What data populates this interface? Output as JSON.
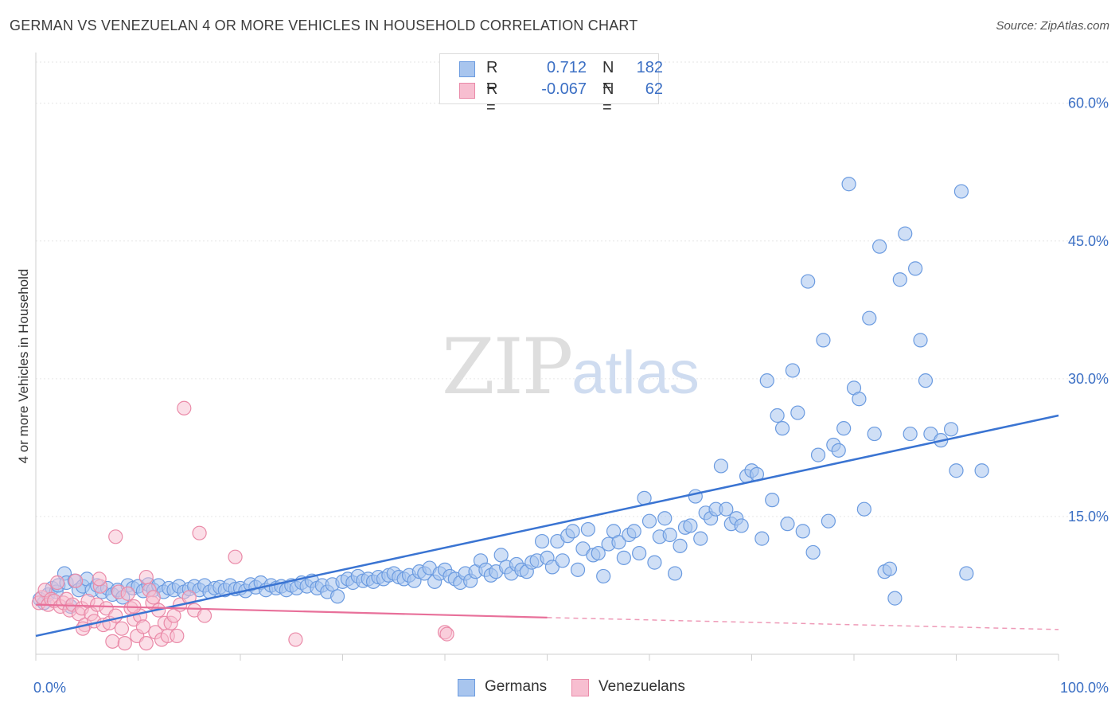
{
  "title": "GERMAN VS VENEZUELAN 4 OR MORE VEHICLES IN HOUSEHOLD CORRELATION CHART",
  "source": "Source: ZipAtlas.com",
  "watermark": {
    "zip": "ZIP",
    "atlas": "atlas"
  },
  "legend": {
    "rows": [
      {
        "r_label": "R =",
        "r_value": "0.712",
        "n_label": "N =",
        "n_value": "182",
        "color": "#a8c5ee",
        "border": "#6b9be0"
      },
      {
        "r_label": "R =",
        "r_value": "-0.067",
        "n_label": "N =",
        "n_value": "62",
        "color": "#f7bed0",
        "border": "#ea8aa8"
      }
    ]
  },
  "bottom_legend": [
    {
      "label": "Germans",
      "color": "#a8c5ee",
      "border": "#6b9be0"
    },
    {
      "label": "Venezuelans",
      "color": "#f7bed0",
      "border": "#ea8aa8"
    }
  ],
  "chart_data": {
    "type": "scatter",
    "title": "GERMAN VS VENEZUELAN 4 OR MORE VEHICLES IN HOUSEHOLD CORRELATION CHART",
    "xlabel": "",
    "ylabel": "4 or more Vehicles in Household",
    "xlim": [
      0,
      100
    ],
    "ylim": [
      0,
      65
    ],
    "x_ticks": [
      {
        "value": 0,
        "label": "0.0%"
      },
      {
        "value": 100,
        "label": "100.0%"
      }
    ],
    "y_ticks": [
      {
        "value": 15,
        "label": "15.0%"
      },
      {
        "value": 30,
        "label": "30.0%"
      },
      {
        "value": 45,
        "label": "45.0%"
      },
      {
        "value": 60,
        "label": "60.0%"
      }
    ],
    "grid": true,
    "legend_placement": "top-center",
    "colors": {
      "germans_fill": "#a8c5ee",
      "germans_stroke": "#6b9be0",
      "germans_line": "#3a74d2",
      "venezuelans_fill": "#f7bed0",
      "venezuelans_stroke": "#ea8aa8",
      "venezuelans_line": "#e8709a"
    },
    "series": [
      {
        "name": "Germans",
        "trend": {
          "x": [
            0,
            100
          ],
          "y": [
            2.0,
            26.0
          ],
          "style": "solid"
        },
        "points": [
          [
            0.4,
            6.0
          ],
          [
            0.8,
            5.6
          ],
          [
            1.2,
            6.5
          ],
          [
            1.6,
            7.2
          ],
          [
            2.0,
            6.8
          ],
          [
            2.2,
            7.5
          ],
          [
            2.8,
            8.8
          ],
          [
            3.0,
            7.8
          ],
          [
            3.4,
            5.2
          ],
          [
            3.8,
            8.0
          ],
          [
            4.2,
            7.0
          ],
          [
            4.6,
            7.4
          ],
          [
            5.0,
            8.2
          ],
          [
            5.5,
            7.0
          ],
          [
            6.0,
            7.5
          ],
          [
            6.5,
            6.8
          ],
          [
            7.0,
            7.2
          ],
          [
            7.5,
            6.5
          ],
          [
            8.0,
            7.0
          ],
          [
            8.5,
            6.2
          ],
          [
            9.0,
            7.5
          ],
          [
            9.5,
            7.2
          ],
          [
            10.0,
            7.4
          ],
          [
            10.5,
            6.9
          ],
          [
            11.0,
            7.6
          ],
          [
            11.5,
            7.0
          ],
          [
            12.0,
            7.5
          ],
          [
            12.5,
            6.8
          ],
          [
            13.0,
            7.2
          ],
          [
            13.5,
            7.0
          ],
          [
            14.0,
            7.4
          ],
          [
            14.5,
            6.8
          ],
          [
            15.0,
            7.1
          ],
          [
            15.5,
            7.4
          ],
          [
            16.0,
            7.0
          ],
          [
            16.5,
            7.5
          ],
          [
            17.0,
            6.8
          ],
          [
            17.5,
            7.2
          ],
          [
            18.0,
            7.3
          ],
          [
            18.5,
            7.0
          ],
          [
            19.0,
            7.5
          ],
          [
            19.5,
            7.1
          ],
          [
            20.0,
            7.2
          ],
          [
            20.5,
            6.9
          ],
          [
            21.0,
            7.6
          ],
          [
            21.5,
            7.3
          ],
          [
            22.0,
            7.8
          ],
          [
            22.5,
            7.0
          ],
          [
            23.0,
            7.5
          ],
          [
            23.5,
            7.2
          ],
          [
            24.0,
            7.4
          ],
          [
            24.5,
            7.0
          ],
          [
            25.0,
            7.5
          ],
          [
            25.5,
            7.2
          ],
          [
            26.0,
            7.8
          ],
          [
            26.5,
            7.4
          ],
          [
            27.0,
            8.0
          ],
          [
            27.5,
            7.2
          ],
          [
            28.0,
            7.5
          ],
          [
            28.5,
            6.8
          ],
          [
            29.0,
            7.6
          ],
          [
            29.5,
            6.3
          ],
          [
            30.0,
            7.9
          ],
          [
            30.5,
            8.2
          ],
          [
            31.0,
            7.8
          ],
          [
            31.5,
            8.5
          ],
          [
            32.0,
            8.0
          ],
          [
            32.5,
            8.2
          ],
          [
            33.0,
            7.9
          ],
          [
            33.5,
            8.4
          ],
          [
            34.0,
            8.2
          ],
          [
            34.5,
            8.6
          ],
          [
            35.0,
            8.8
          ],
          [
            35.5,
            8.4
          ],
          [
            36.0,
            8.2
          ],
          [
            36.5,
            8.6
          ],
          [
            37.0,
            8.0
          ],
          [
            37.5,
            9.0
          ],
          [
            38.0,
            8.8
          ],
          [
            38.5,
            9.4
          ],
          [
            39.0,
            7.9
          ],
          [
            39.5,
            8.8
          ],
          [
            40.0,
            9.2
          ],
          [
            40.5,
            8.5
          ],
          [
            41.0,
            8.2
          ],
          [
            41.5,
            7.8
          ],
          [
            42.0,
            8.8
          ],
          [
            42.5,
            8.0
          ],
          [
            43.0,
            9.0
          ],
          [
            43.5,
            10.2
          ],
          [
            44.0,
            9.2
          ],
          [
            44.5,
            8.6
          ],
          [
            45.0,
            9.0
          ],
          [
            45.5,
            10.8
          ],
          [
            46.0,
            9.5
          ],
          [
            46.5,
            8.8
          ],
          [
            47.0,
            9.8
          ],
          [
            47.5,
            9.2
          ],
          [
            48.0,
            9.0
          ],
          [
            48.5,
            10.0
          ],
          [
            49.0,
            10.2
          ],
          [
            49.5,
            12.3
          ],
          [
            50.0,
            10.5
          ],
          [
            50.5,
            9.5
          ],
          [
            51.0,
            12.3
          ],
          [
            51.5,
            10.2
          ],
          [
            52.0,
            12.9
          ],
          [
            52.5,
            13.4
          ],
          [
            53.0,
            9.2
          ],
          [
            53.5,
            11.5
          ],
          [
            54.0,
            13.6
          ],
          [
            54.5,
            10.8
          ],
          [
            55.0,
            11.0
          ],
          [
            55.5,
            8.5
          ],
          [
            56.0,
            12.0
          ],
          [
            56.5,
            13.4
          ],
          [
            57.0,
            12.2
          ],
          [
            57.5,
            10.5
          ],
          [
            58.0,
            13.0
          ],
          [
            58.5,
            13.4
          ],
          [
            59.0,
            11.0
          ],
          [
            59.5,
            17.0
          ],
          [
            60.0,
            14.5
          ],
          [
            60.5,
            10.0
          ],
          [
            61.0,
            12.8
          ],
          [
            61.5,
            14.8
          ],
          [
            62.0,
            13.0
          ],
          [
            62.5,
            8.8
          ],
          [
            63.0,
            11.8
          ],
          [
            63.5,
            13.8
          ],
          [
            64.0,
            14.0
          ],
          [
            64.5,
            17.2
          ],
          [
            65.0,
            12.6
          ],
          [
            65.5,
            15.4
          ],
          [
            66.0,
            14.8
          ],
          [
            66.5,
            15.8
          ],
          [
            67.0,
            20.5
          ],
          [
            67.5,
            15.8
          ],
          [
            68.0,
            14.2
          ],
          [
            68.5,
            14.8
          ],
          [
            69.0,
            14.0
          ],
          [
            69.5,
            19.4
          ],
          [
            70.0,
            20.0
          ],
          [
            70.5,
            19.6
          ],
          [
            71.0,
            12.6
          ],
          [
            71.5,
            29.8
          ],
          [
            72.0,
            16.8
          ],
          [
            72.5,
            26.0
          ],
          [
            73.0,
            24.6
          ],
          [
            73.5,
            14.2
          ],
          [
            74.0,
            30.9
          ],
          [
            74.5,
            26.3
          ],
          [
            75.0,
            13.4
          ],
          [
            75.5,
            40.6
          ],
          [
            76.0,
            11.1
          ],
          [
            76.5,
            21.7
          ],
          [
            77.0,
            34.2
          ],
          [
            77.5,
            14.5
          ],
          [
            78.0,
            22.8
          ],
          [
            78.5,
            22.2
          ],
          [
            79.0,
            24.6
          ],
          [
            79.5,
            51.2
          ],
          [
            80.0,
            29.0
          ],
          [
            80.5,
            27.8
          ],
          [
            81.0,
            15.8
          ],
          [
            81.5,
            36.6
          ],
          [
            82.0,
            24.0
          ],
          [
            82.5,
            44.4
          ],
          [
            83.0,
            9.0
          ],
          [
            83.5,
            9.3
          ],
          [
            84.0,
            6.1
          ],
          [
            84.5,
            40.8
          ],
          [
            85.0,
            45.8
          ],
          [
            85.5,
            24.0
          ],
          [
            86.0,
            42.0
          ],
          [
            86.5,
            34.2
          ],
          [
            87.0,
            29.8
          ],
          [
            87.5,
            24.0
          ],
          [
            88.5,
            23.3
          ],
          [
            89.5,
            24.5
          ],
          [
            90.0,
            20.0
          ],
          [
            90.5,
            50.4
          ],
          [
            91.0,
            8.8
          ],
          [
            92.5,
            20.0
          ]
        ]
      },
      {
        "name": "Venezuelans",
        "trend": {
          "x": [
            0,
            50,
            100
          ],
          "y": [
            5.4,
            4.0,
            2.7
          ],
          "style": "solid-then-dashed",
          "solid_until": 50
        },
        "points": [
          [
            0.3,
            5.6
          ],
          [
            0.6,
            6.2
          ],
          [
            0.9,
            7.0
          ],
          [
            1.2,
            5.4
          ],
          [
            1.5,
            6.0
          ],
          [
            1.8,
            5.8
          ],
          [
            2.1,
            7.8
          ],
          [
            2.4,
            5.2
          ],
          [
            2.7,
            5.6
          ],
          [
            3.0,
            6.0
          ],
          [
            3.3,
            4.8
          ],
          [
            3.6,
            5.4
          ],
          [
            3.9,
            8.0
          ],
          [
            4.2,
            4.4
          ],
          [
            4.5,
            5.0
          ],
          [
            4.8,
            3.2
          ],
          [
            5.1,
            5.8
          ],
          [
            5.4,
            4.4
          ],
          [
            5.7,
            3.6
          ],
          [
            6.0,
            5.4
          ],
          [
            6.3,
            7.4
          ],
          [
            6.6,
            3.2
          ],
          [
            6.9,
            5.0
          ],
          [
            7.2,
            3.4
          ],
          [
            7.5,
            1.4
          ],
          [
            7.8,
            4.2
          ],
          [
            8.1,
            6.8
          ],
          [
            8.4,
            2.8
          ],
          [
            8.7,
            1.2
          ],
          [
            9.0,
            6.6
          ],
          [
            9.3,
            5.0
          ],
          [
            9.6,
            3.8
          ],
          [
            9.9,
            2.0
          ],
          [
            10.2,
            4.2
          ],
          [
            10.5,
            3.0
          ],
          [
            10.8,
            8.4
          ],
          [
            11.1,
            7.0
          ],
          [
            11.4,
            5.6
          ],
          [
            11.7,
            2.4
          ],
          [
            12.0,
            4.8
          ],
          [
            12.3,
            1.6
          ],
          [
            12.6,
            3.4
          ],
          [
            12.9,
            2.0
          ],
          [
            13.2,
            3.4
          ],
          [
            13.5,
            4.2
          ],
          [
            13.8,
            2.0
          ],
          [
            14.1,
            5.4
          ],
          [
            14.5,
            26.8
          ],
          [
            15.0,
            6.2
          ],
          [
            15.5,
            4.8
          ],
          [
            16.0,
            13.2
          ],
          [
            16.5,
            4.2
          ],
          [
            7.8,
            12.8
          ],
          [
            9.6,
            5.2
          ],
          [
            6.2,
            8.2
          ],
          [
            4.6,
            2.8
          ],
          [
            19.5,
            10.6
          ],
          [
            10.8,
            1.2
          ],
          [
            11.5,
            6.2
          ],
          [
            25.4,
            1.6
          ],
          [
            40.0,
            2.4
          ],
          [
            40.2,
            2.2
          ]
        ]
      }
    ]
  }
}
